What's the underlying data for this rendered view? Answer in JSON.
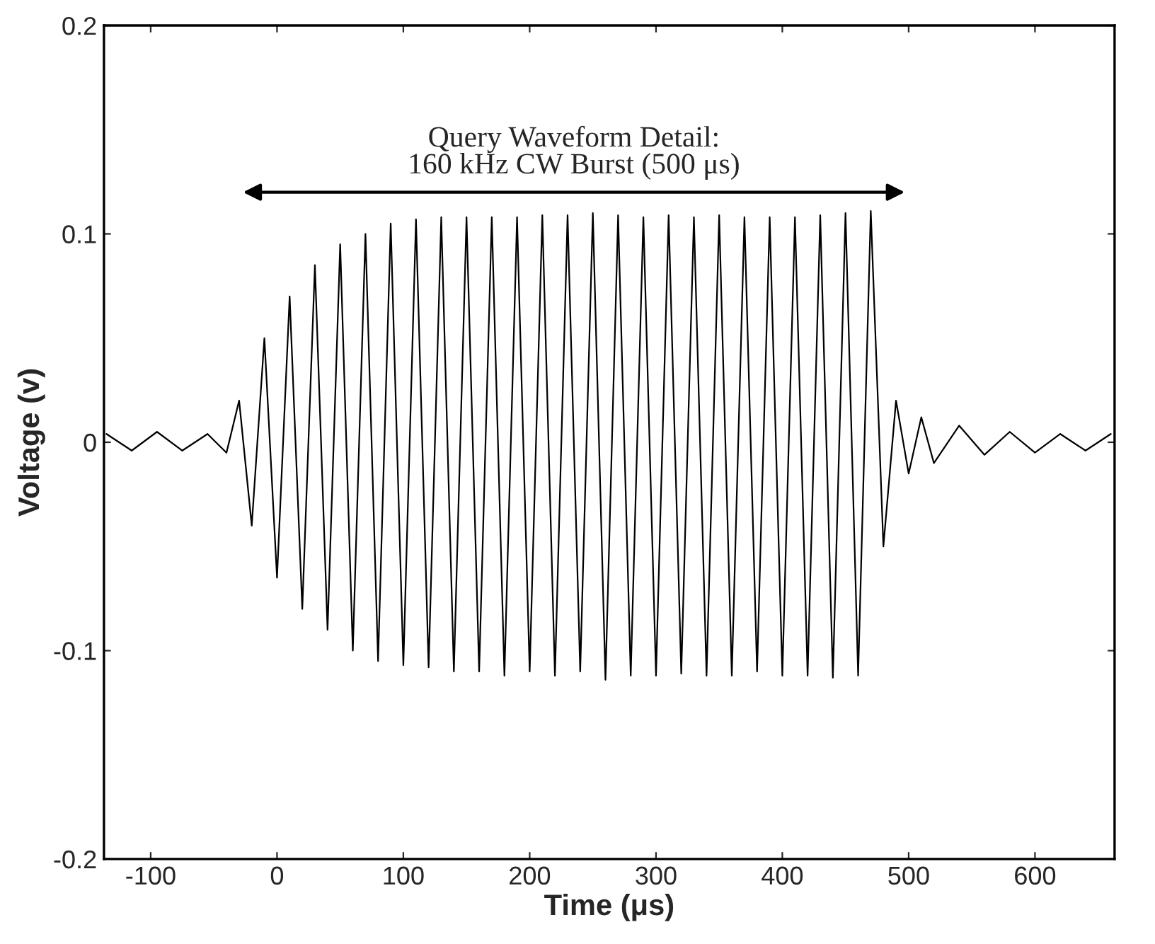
{
  "chart_data": {
    "type": "line",
    "xlabel": "Time (μs)",
    "ylabel": "Voltage (v)",
    "xlim": [
      -137,
      663
    ],
    "xticks": [
      -100,
      0,
      100,
      200,
      300,
      400,
      500,
      600
    ],
    "ylim": [
      -0.2,
      0.2
    ],
    "yticks": [
      -0.2,
      -0.1,
      0,
      0.1,
      0.2
    ],
    "grid": false,
    "legend": false,
    "marker": "none",
    "line_style": "solid",
    "annotations": [
      "Query Waveform Detail:\n160 kHz CW Burst (500 μs)"
    ],
    "series": [
      {
        "color": "#000000",
        "x": [
          -135,
          -115,
          -95,
          -75,
          -55,
          -40,
          -30,
          -20,
          -10,
          0,
          10,
          20,
          30,
          40,
          50,
          60,
          70,
          80,
          90,
          100,
          110,
          120,
          130,
          140,
          150,
          160,
          170,
          180,
          190,
          200,
          210,
          220,
          230,
          240,
          250,
          260,
          270,
          280,
          290,
          300,
          310,
          320,
          330,
          340,
          350,
          360,
          370,
          380,
          390,
          400,
          410,
          420,
          430,
          440,
          450,
          460,
          470,
          480,
          490,
          500,
          510,
          520,
          540,
          560,
          580,
          600,
          620,
          640,
          660
        ],
        "values": [
          0.004,
          -0.004,
          0.005,
          -0.004,
          0.004,
          -0.005,
          0.02,
          -0.04,
          0.05,
          -0.065,
          0.07,
          -0.08,
          0.085,
          -0.09,
          0.095,
          -0.1,
          0.1,
          -0.105,
          0.105,
          -0.107,
          0.107,
          -0.108,
          0.108,
          -0.11,
          0.108,
          -0.11,
          0.108,
          -0.112,
          0.108,
          -0.11,
          0.109,
          -0.112,
          0.109,
          -0.11,
          0.11,
          -0.114,
          0.109,
          -0.112,
          0.108,
          -0.112,
          0.109,
          -0.111,
          0.108,
          -0.112,
          0.109,
          -0.112,
          0.108,
          -0.11,
          0.108,
          -0.112,
          0.108,
          -0.112,
          0.109,
          -0.113,
          0.11,
          -0.112,
          0.111,
          -0.05,
          0.02,
          -0.015,
          0.012,
          -0.01,
          0.008,
          -0.006,
          0.005,
          -0.005,
          0.004,
          -0.004,
          0.004
        ]
      }
    ]
  }
}
